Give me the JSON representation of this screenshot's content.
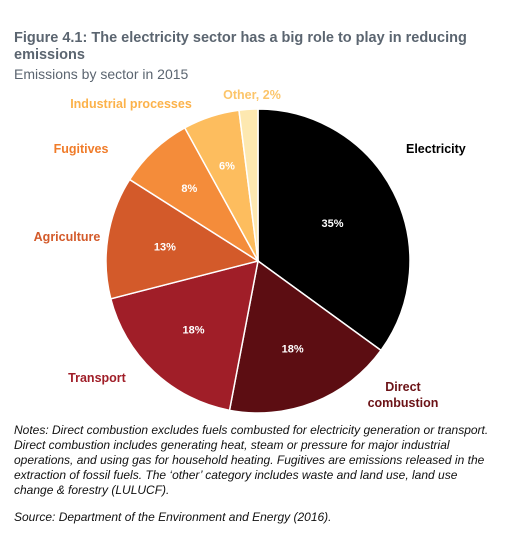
{
  "figure": {
    "title": "Figure 4.1: The electricity sector has a big role to play in reducing emissions",
    "subtitle": "Emissions by sector in 2015"
  },
  "chart_data": {
    "type": "pie",
    "title": "Figure 4.1: The electricity sector has a big role to play in reducing emissions",
    "subtitle": "Emissions by sector in 2015",
    "slices": [
      {
        "label": "Electricity",
        "value": 35,
        "value_label": "35%",
        "color": "#000000",
        "label_color": "#000000",
        "inner_color": "#ffffff"
      },
      {
        "label": "Direct combustion",
        "value": 18,
        "value_label": "18%",
        "color": "#5c0d12",
        "label_color": "#6b1216",
        "inner_color": "#ffffff"
      },
      {
        "label": "Transport",
        "value": 18,
        "value_label": "18%",
        "color": "#a01e28",
        "label_color": "#a01e28",
        "inner_color": "#ffffff"
      },
      {
        "label": "Agriculture",
        "value": 13,
        "value_label": "13%",
        "color": "#d35a2a",
        "label_color": "#d35a2a",
        "inner_color": "#ffffff"
      },
      {
        "label": "Fugitives",
        "value": 8,
        "value_label": "8%",
        "color": "#f48c3a",
        "label_color": "#f07c2a",
        "inner_color": "#ffffff"
      },
      {
        "label": "Industrial processes",
        "value": 6,
        "value_label": "6%",
        "color": "#fdbd5e",
        "label_color": "#fcb24a",
        "inner_color": "#ffffff"
      },
      {
        "label": "Other, 2%",
        "value": 2,
        "value_label": "",
        "color": "#fde8b0",
        "label_color": "#fcc56a",
        "inner_color": "#ffffff"
      }
    ]
  },
  "notes": "Notes: Direct combustion excludes fuels combusted for electricity generation or transport. Direct combustion includes generating heat, steam or pressure for major industrial operations, and using gas for household heating. Fugitives are emissions released in the extraction of fossil fuels. The ‘other’ category includes waste and land use, land use change & forestry (LULUCF).",
  "source": "Source: Department of the Environment and Energy (2016)."
}
